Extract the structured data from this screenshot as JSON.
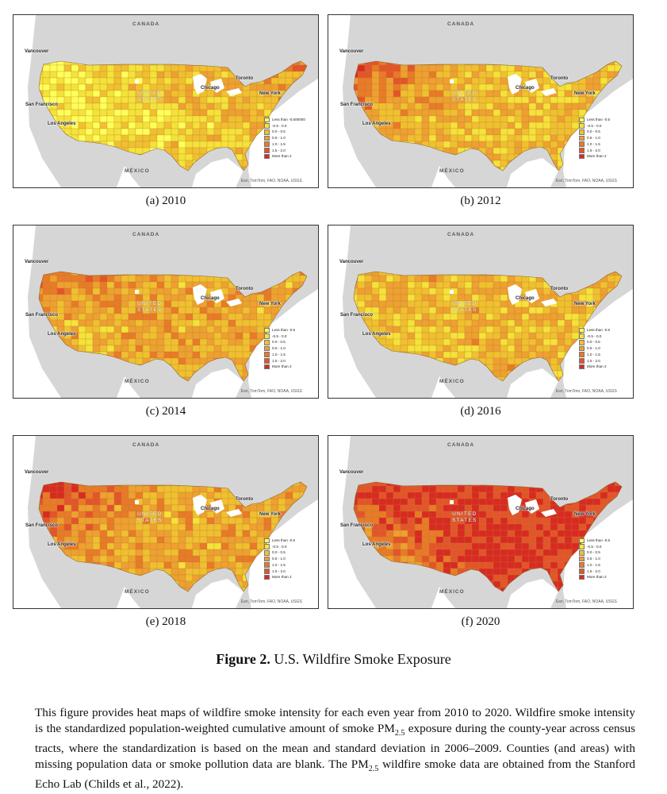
{
  "panels": [
    {
      "caption": "(a) 2010",
      "legend_first": "Less than -0.500000",
      "intensity": 0.3,
      "west_intensity": 0.05
    },
    {
      "caption": "(b) 2012",
      "legend_first": "Less than -0.5",
      "intensity": 0.35,
      "west_intensity": 0.85
    },
    {
      "caption": "(c) 2014",
      "legend_first": "Less than -0.5",
      "intensity": 0.45,
      "west_intensity": 0.7
    },
    {
      "caption": "(d) 2016",
      "legend_first": "Less than -0.5",
      "intensity": 0.4,
      "west_intensity": 0.45
    },
    {
      "caption": "(e) 2018",
      "legend_first": "Less than -0.5",
      "intensity": 0.45,
      "west_intensity": 0.95
    },
    {
      "caption": "(f) 2020",
      "legend_first": "Less than -0.5",
      "intensity": 0.9,
      "west_intensity": 0.95
    }
  ],
  "map_labels": {
    "canada": "CANADA",
    "mexico": "MÉXICO",
    "united": "UNITED",
    "states": "STATES",
    "vancouver": "Vancouver",
    "san_francisco": "San Francisco",
    "los_angeles": "Los Angeles",
    "chicago": "Chicago",
    "toronto": "Toronto",
    "new_york": "New York",
    "attribution": "Esri, TomTom, FAO, NOAA, USGS"
  },
  "legend_rest": [
    "-0.5 - 0.0",
    "0.0 - 0.5",
    "0.5 - 1.0",
    "1.0 - 1.5",
    "1.5 - 2.0",
    "More than 2"
  ],
  "legend_colors": [
    "#ffff5a",
    "#f5e23a",
    "#f0c030",
    "#eea030",
    "#e87a28",
    "#e4542a",
    "#d92a22"
  ],
  "figure": {
    "label": "Figure 2.",
    "title": "U.S. Wildfire Smoke Exposure"
  },
  "description": "This figure provides heat maps of wildfire smoke intensity for each even year from 2010 to 2020. Wildfire smoke intensity is the standardized population-weighted cumulative amount of smoke PM2.5 exposure during the county-year across census tracts, where the standardization is based on the mean and standard deviation in 2006–2009. Counties (and areas) with missing population data or smoke pollution data are blank. The PM2.5 wildfire smoke data are obtained from the Stanford Echo Lab (Childs et al., 2022)."
}
